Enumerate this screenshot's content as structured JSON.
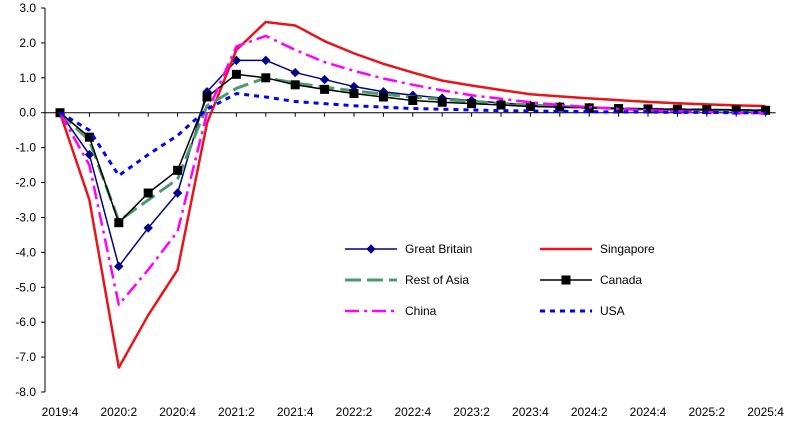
{
  "chart_data": {
    "type": "line",
    "title": "",
    "xlabel": "",
    "ylabel": "",
    "ylim": [
      -8.0,
      3.0
    ],
    "y_ticks": [
      "3.0",
      "2.0",
      "1.0",
      "0.0",
      "-1.0",
      "-2.0",
      "-3.0",
      "-4.0",
      "-5.0",
      "-6.0",
      "-7.0",
      "-8.0"
    ],
    "x_tick_labels": [
      "2019:4",
      "2020:2",
      "2020:4",
      "2021:2",
      "2021:4",
      "2022:2",
      "2022:4",
      "2023:2",
      "2023:4",
      "2024:2",
      "2024:4",
      "2025:2",
      "2025:4"
    ],
    "grid": false,
    "legend_position": "lower-right",
    "x": [
      "2019:4",
      "2020:1",
      "2020:2",
      "2020:3",
      "2020:4",
      "2021:1",
      "2021:2",
      "2021:3",
      "2021:4",
      "2022:1",
      "2022:2",
      "2022:3",
      "2022:4",
      "2023:1",
      "2023:2",
      "2023:3",
      "2023:4",
      "2024:1",
      "2024:2",
      "2024:3",
      "2024:4",
      "2025:1",
      "2025:2",
      "2025:3",
      "2025:4"
    ],
    "series": [
      {
        "name": "Great Britain",
        "color": "#00008B",
        "dash": "solid",
        "marker": "diamond",
        "values": [
          0.0,
          -1.2,
          -4.4,
          -3.3,
          -2.3,
          0.6,
          1.5,
          1.5,
          1.15,
          0.95,
          0.75,
          0.6,
          0.5,
          0.42,
          0.35,
          0.28,
          0.22,
          0.18,
          0.15,
          0.12,
          0.1,
          0.08,
          0.07,
          0.06,
          0.05
        ]
      },
      {
        "name": "Singapore",
        "color": "#E8141A",
        "dash": "solid",
        "marker": "none",
        "values": [
          0.0,
          -2.5,
          -7.3,
          -5.8,
          -4.5,
          -0.3,
          1.8,
          2.6,
          2.5,
          2.05,
          1.7,
          1.4,
          1.15,
          0.92,
          0.78,
          0.65,
          0.53,
          0.47,
          0.41,
          0.36,
          0.31,
          0.27,
          0.24,
          0.21,
          0.19
        ]
      },
      {
        "name": "Rest of Asia",
        "color": "#4C9A6C",
        "dash": "long-dash",
        "marker": "none",
        "values": [
          0.0,
          -0.8,
          -3.1,
          -2.5,
          -1.9,
          0.2,
          0.7,
          1.0,
          0.85,
          0.73,
          0.63,
          0.53,
          0.45,
          0.38,
          0.32,
          0.27,
          0.22,
          0.18,
          0.15,
          0.12,
          0.1,
          0.09,
          0.08,
          0.07,
          0.06
        ]
      },
      {
        "name": "Canada",
        "color": "#000000",
        "dash": "solid",
        "marker": "square",
        "values": [
          0.0,
          -0.7,
          -3.15,
          -2.3,
          -1.65,
          0.45,
          1.1,
          1.0,
          0.8,
          0.67,
          0.55,
          0.45,
          0.35,
          0.3,
          0.26,
          0.22,
          0.18,
          0.16,
          0.14,
          0.12,
          0.11,
          0.1,
          0.09,
          0.08,
          0.07
        ]
      },
      {
        "name": "China",
        "color": "#FF00FF",
        "dash": "dash-dot",
        "marker": "none",
        "values": [
          0.0,
          -1.5,
          -5.5,
          -4.5,
          -3.4,
          0.0,
          1.9,
          2.2,
          1.8,
          1.45,
          1.2,
          0.98,
          0.8,
          0.64,
          0.5,
          0.4,
          0.3,
          0.22,
          0.16,
          0.11,
          0.07,
          0.04,
          0.02,
          0.0,
          -0.02
        ]
      },
      {
        "name": "USA",
        "color": "#0000FF",
        "dash": "dotted",
        "marker": "none",
        "values": [
          0.0,
          -0.5,
          -1.8,
          -1.2,
          -0.65,
          0.1,
          0.55,
          0.45,
          0.32,
          0.26,
          0.2,
          0.16,
          0.12,
          0.1,
          0.08,
          0.06,
          0.05,
          0.04,
          0.03,
          0.02,
          0.02,
          0.01,
          0.01,
          0.0,
          0.0
        ]
      }
    ]
  }
}
